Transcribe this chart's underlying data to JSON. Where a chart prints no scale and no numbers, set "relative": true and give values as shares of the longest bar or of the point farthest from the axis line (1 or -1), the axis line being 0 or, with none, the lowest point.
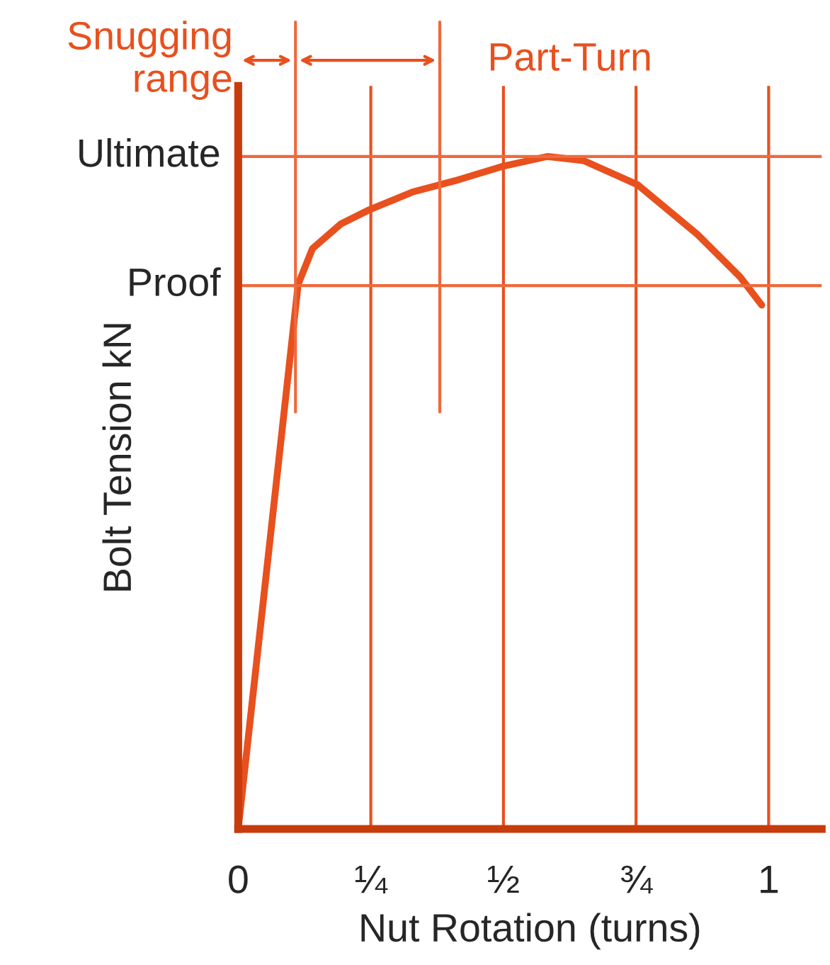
{
  "chart_data": {
    "type": "line",
    "relative": true,
    "xlabel": "Nut Rotation (turns)",
    "ylabel": "Bolt Tension kN",
    "series": [
      {
        "color": "#e8501e",
        "x": [
          0,
          0.113,
          0.14,
          0.194,
          0.245,
          0.328,
          0.409,
          0.497,
          0.583,
          0.651,
          0.753,
          0.866,
          0.946,
          0.987
        ],
        "values": [
          0,
          0.81,
          0.863,
          0.9,
          0.92,
          0.947,
          0.964,
          0.985,
          1.0,
          0.994,
          0.958,
          0.884,
          0.821,
          0.779
        ]
      }
    ],
    "xlim": [
      0,
      1.1
    ],
    "xticks": [
      0,
      {
        "value": 0.25,
        "label": "¼"
      },
      {
        "value": 0.5,
        "label": "½"
      },
      {
        "value": 0.75,
        "label": "¾"
      },
      1
    ],
    "grid": "x",
    "marker": "none",
    "line_style": "solid",
    "ref_lines": [
      {
        "axis": "y",
        "value": 1.0,
        "label": "Ultimate",
        "color": "#ee6a3c"
      },
      {
        "axis": "y",
        "value": 0.808,
        "label": "Proof",
        "color": "#ee6a3c"
      },
      {
        "axis": "x",
        "value": 0.108,
        "color": "#ee6a3c"
      },
      {
        "axis": "x",
        "value": 0.38,
        "color": "#ee6a3c"
      }
    ],
    "annotations": [
      "Snugging range",
      "Part-Turn"
    ]
  }
}
